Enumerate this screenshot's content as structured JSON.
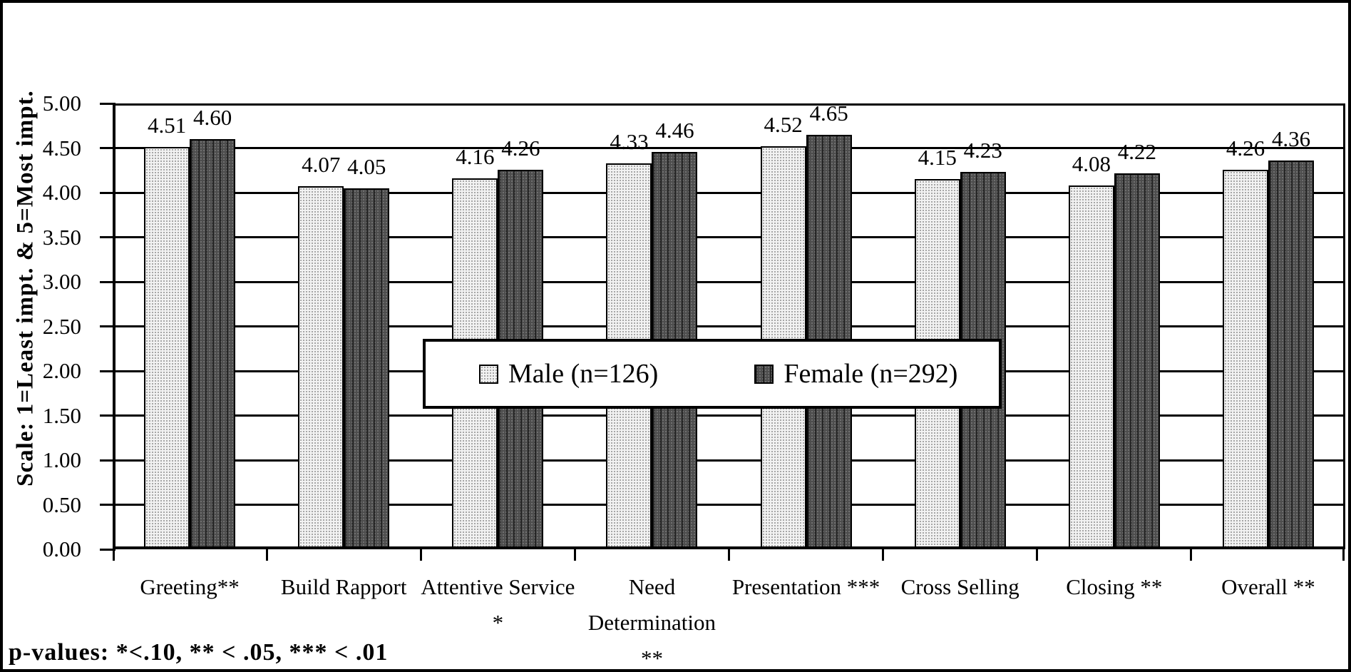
{
  "chart_data": {
    "type": "bar",
    "categories": [
      "Greeting**",
      "Build Rapport",
      "Attentive Service *",
      "Need Determination **",
      "Presentation ***",
      "Cross Selling",
      "Closing **",
      "Overall **"
    ],
    "series": [
      {
        "name": "Male (n=126)",
        "values": [
          4.51,
          4.07,
          4.16,
          4.33,
          4.52,
          4.15,
          4.08,
          4.26
        ]
      },
      {
        "name": "Female (n=292)",
        "values": [
          4.6,
          4.05,
          4.26,
          4.46,
          4.65,
          4.23,
          4.22,
          4.36
        ]
      }
    ],
    "title": "",
    "xlabel": "",
    "ylabel": "Scale: 1=Least impt. & 5=Most impt.",
    "ylim": [
      0,
      5
    ],
    "ytick_step": 0.5,
    "yticks": [
      "5.00",
      "4.50",
      "4.00",
      "3.50",
      "3.00",
      "2.50",
      "2.00",
      "1.50",
      "1.00",
      "0.50",
      "0.00"
    ],
    "grid": true,
    "legend_position": "center-overlay",
    "footnote": "p-values: *<.10, ** < .05, *** < .01"
  },
  "colors": {
    "male_base": "#f2f2f2",
    "male_dots": "#8c8c8c",
    "female_base": "#4d4d4d",
    "axis": "#000000",
    "background": "#ffffff"
  }
}
